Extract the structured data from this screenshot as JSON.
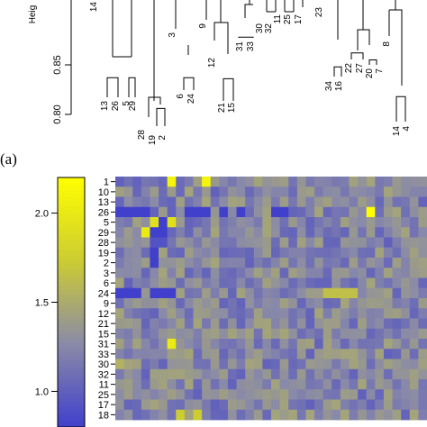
{
  "figure": {
    "panel_label": "(a)"
  },
  "chart_data": [
    {
      "type": "dendrogram",
      "ylabel": "Heig",
      "yticks": [
        0.8,
        0.85
      ],
      "ylim": [
        0.8,
        0.9
      ],
      "leaves_visible": [
        "14",
        "13",
        "26",
        "5",
        "29",
        "28",
        "19",
        "2",
        "3",
        "6",
        "24",
        "9",
        "12",
        "21",
        "15",
        "31",
        "33",
        "30",
        "32",
        "11",
        "25",
        "17",
        "23",
        "34",
        "16",
        "22",
        "27",
        "20",
        "7",
        "8",
        "14",
        "4"
      ],
      "clusters": [
        {
          "leaves": [
            "13",
            "26"
          ],
          "height": 0.837
        },
        {
          "leaves": [
            "5",
            "29"
          ],
          "height": 0.837
        },
        {
          "leaves": [
            "19",
            "2"
          ],
          "height": 0.806
        },
        {
          "leaves": [
            "6",
            "24"
          ],
          "height": 0.837
        },
        {
          "leaves": [
            "21",
            "15"
          ],
          "height": 0.836
        },
        {
          "leaves": [
            "31",
            "33"
          ],
          "height": 0.878
        },
        {
          "leaves": [
            "34",
            "16"
          ],
          "height": 0.848
        },
        {
          "leaves": [
            "22",
            "27"
          ],
          "height": 0.862
        },
        {
          "leaves": [
            "20",
            "7"
          ],
          "height": 0.855
        },
        {
          "leaves": [
            "14",
            "4"
          ],
          "height": 0.818
        }
      ]
    },
    {
      "type": "heatmap",
      "rows": [
        "1",
        "10",
        "13",
        "26",
        "5",
        "29",
        "28",
        "19",
        "2",
        "3",
        "6",
        "24",
        "9",
        "12",
        "21",
        "15",
        "31",
        "33",
        "30",
        "32",
        "11",
        "25",
        "17",
        "18"
      ],
      "colorbar": {
        "ticks": [
          1.0,
          1.5,
          2.0
        ],
        "range": [
          0.8,
          2.2
        ],
        "colors": [
          "#4040cc",
          "#8a8aa8",
          "#cccc33",
          "#ffff00"
        ]
      },
      "n_cols": 36,
      "hot_cells": [
        {
          "row": "1",
          "cols": [
            6,
            10
          ],
          "value": 2.1
        },
        {
          "row": "26",
          "cols": [
            29
          ],
          "value": 2.2
        },
        {
          "row": "5",
          "cols": [
            4,
            6
          ],
          "value": 1.9
        },
        {
          "row": "29",
          "cols": [
            3
          ],
          "value": 2.0
        },
        {
          "row": "31",
          "cols": [
            6
          ],
          "value": 2.0
        },
        {
          "row": "24",
          "cols": [
            24,
            25,
            26,
            27
          ],
          "value": 1.6
        },
        {
          "row": "30",
          "cols": [
            0
          ],
          "value": 1.5
        },
        {
          "row": "18",
          "cols": [
            7,
            9
          ],
          "value": 1.7
        }
      ],
      "cold_cells": [
        {
          "row": "26",
          "cols": [
            0,
            1,
            2,
            3,
            8,
            9,
            10,
            12,
            14,
            18,
            19
          ],
          "value": 0.8
        },
        {
          "row": "24",
          "cols": [
            0,
            1,
            2,
            4,
            5,
            6
          ],
          "value": 0.8
        },
        {
          "row": "5",
          "cols": [
            5
          ],
          "value": 0.8
        },
        {
          "row": "29",
          "cols": [
            4,
            5
          ],
          "value": 0.8
        },
        {
          "row": "28",
          "cols": [
            4,
            5
          ],
          "value": 0.9
        },
        {
          "row": "19",
          "cols": [
            4
          ],
          "value": 0.8
        },
        {
          "row": "2",
          "cols": [
            4
          ],
          "value": 0.8
        }
      ]
    }
  ]
}
